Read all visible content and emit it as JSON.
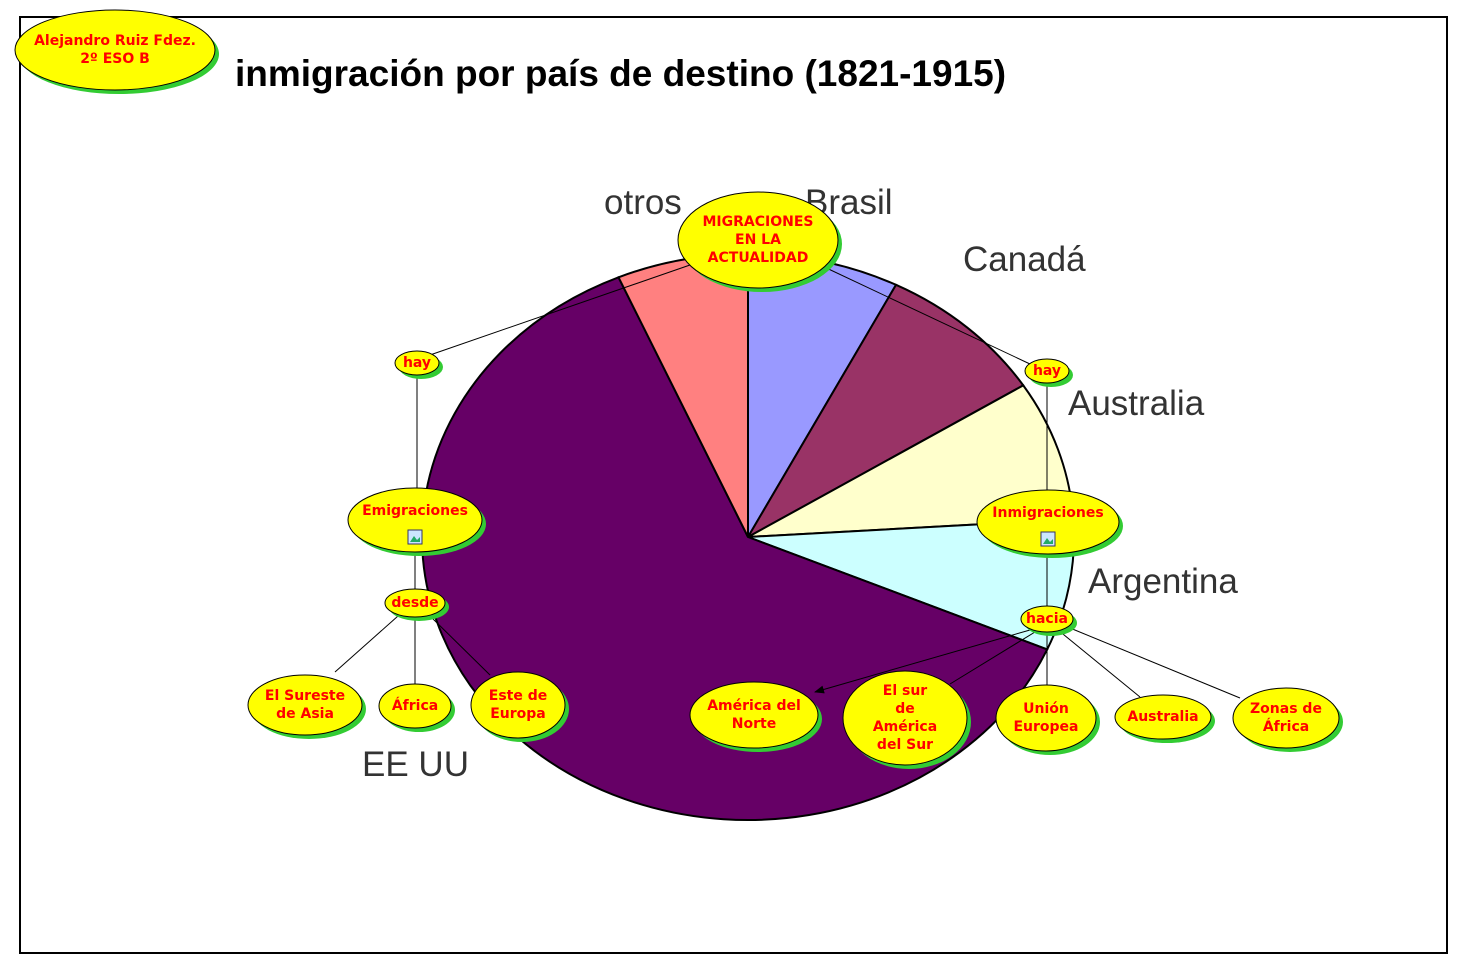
{
  "chart_data": {
    "type": "pie",
    "title": "inmigración por país de destino (1821-1915)",
    "categories": [
      "Brasil",
      "Canadá",
      "Australia",
      "Argentina",
      "EE UU",
      "otros"
    ],
    "values": [
      7.5,
      8.5,
      8,
      7.5,
      62,
      6.5
    ],
    "colors": [
      "#9999ff",
      "#993366",
      "#ffffcc",
      "#ccffff",
      "#660066",
      "#ff8080"
    ]
  },
  "concept_map": {
    "nodes": [
      {
        "lines": [
          "Alejandro Ruiz Fdez.",
          "2º ESO B"
        ]
      },
      {
        "lines": [
          "MIGRACIONES",
          "EN LA",
          "ACTUALIDAD"
        ]
      },
      {
        "lines": [
          "hay"
        ]
      },
      {
        "lines": [
          "hay"
        ]
      },
      {
        "lines": [
          "Emigraciones"
        ]
      },
      {
        "lines": [
          "Inmigraciones"
        ]
      },
      {
        "lines": [
          "desde"
        ]
      },
      {
        "lines": [
          "hacia"
        ]
      },
      {
        "lines": [
          "El Sureste",
          "de Asia"
        ]
      },
      {
        "lines": [
          "África"
        ]
      },
      {
        "lines": [
          "Este de",
          "Europa"
        ]
      },
      {
        "lines": [
          "América del",
          "Norte"
        ]
      },
      {
        "lines": [
          "El sur",
          "de",
          "América",
          "del Sur"
        ]
      },
      {
        "lines": [
          "Unión",
          "Europea"
        ]
      },
      {
        "lines": [
          "Australia"
        ]
      },
      {
        "lines": [
          "Zonas de",
          "África"
        ]
      }
    ]
  }
}
